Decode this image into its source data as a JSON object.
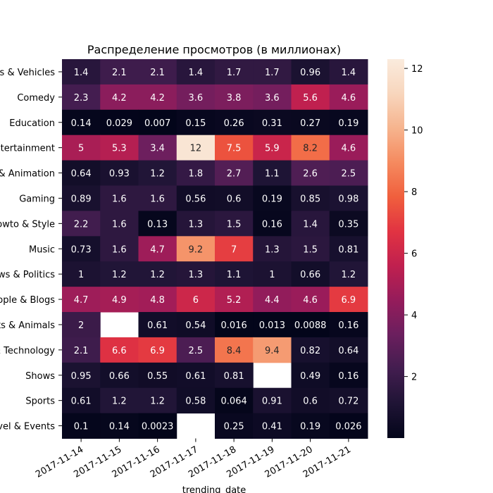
{
  "chart_data": {
    "type": "heatmap",
    "title": "Распределение просмотров (в миллионах)",
    "xlabel": "trending_date",
    "ylabel": "",
    "x": [
      "2017-11-14",
      "2017-11-15",
      "2017-11-16",
      "2017-11-17",
      "2017-11-18",
      "2017-11-19",
      "2017-11-20",
      "2017-11-21"
    ],
    "rows": [
      {
        "label": "Autos & Vehicles",
        "values": [
          1.4,
          2.1,
          2.1,
          1.4,
          1.7,
          1.7,
          0.96,
          1.4
        ]
      },
      {
        "label": "Comedy",
        "values": [
          2.3,
          4.2,
          4.2,
          3.6,
          3.8,
          3.6,
          5.6,
          4.6
        ]
      },
      {
        "label": "Education",
        "values": [
          0.14,
          0.029,
          0.007,
          0.15,
          0.26,
          0.31,
          0.27,
          0.19
        ]
      },
      {
        "label": "Entertainment",
        "values": [
          5,
          5.3,
          3.4,
          12,
          7.5,
          5.9,
          8.2,
          4.6
        ]
      },
      {
        "label": "Film & Animation",
        "values": [
          0.64,
          0.93,
          1.2,
          1.8,
          2.7,
          1.1,
          2.6,
          2.5
        ]
      },
      {
        "label": "Gaming",
        "values": [
          0.89,
          1.6,
          1.6,
          0.56,
          0.6,
          0.19,
          0.85,
          0.98
        ]
      },
      {
        "label": "Howto & Style",
        "values": [
          2.2,
          1.6,
          0.13,
          1.3,
          1.5,
          0.16,
          1.4,
          0.35
        ]
      },
      {
        "label": "Music",
        "values": [
          0.73,
          1.6,
          4.7,
          9.2,
          7,
          1.3,
          1.5,
          0.81
        ]
      },
      {
        "label": "News & Politics",
        "values": [
          1,
          1.2,
          1.2,
          1.3,
          1.1,
          1,
          0.66,
          1.2
        ]
      },
      {
        "label": "People & Blogs",
        "values": [
          4.7,
          4.9,
          4.8,
          6,
          5.2,
          4.4,
          4.6,
          6.9
        ]
      },
      {
        "label": "Pets & Animals",
        "values": [
          2,
          null,
          0.61,
          0.54,
          0.016,
          0.013,
          0.0088,
          0.16
        ]
      },
      {
        "label": "Science & Technology",
        "values": [
          2.1,
          6.6,
          6.9,
          2.5,
          8.4,
          9.4,
          0.82,
          0.64
        ]
      },
      {
        "label": "Shows",
        "values": [
          0.95,
          0.66,
          0.55,
          0.61,
          0.81,
          null,
          0.49,
          0.16
        ]
      },
      {
        "label": "Sports",
        "values": [
          0.61,
          1.2,
          1.2,
          0.58,
          0.064,
          0.91,
          0.6,
          0.72
        ]
      },
      {
        "label": "Travel & Events",
        "values": [
          0.1,
          0.14,
          0.0023,
          null,
          0.25,
          0.41,
          0.19,
          0.026
        ]
      }
    ],
    "colorbar": {
      "ticks": [
        2,
        4,
        6,
        8,
        10,
        12
      ],
      "range": [
        0.0023,
        12.3
      ],
      "colormap": "rocket",
      "colors": [
        "#03051a",
        "#1f1435",
        "#421d4f",
        "#6b1f5e",
        "#951c5b",
        "#c0204f",
        "#e13342",
        "#f05f3d",
        "#f58a5f",
        "#f6b48e",
        "#f8d6bd",
        "#faebdd"
      ]
    },
    "grid": false
  }
}
